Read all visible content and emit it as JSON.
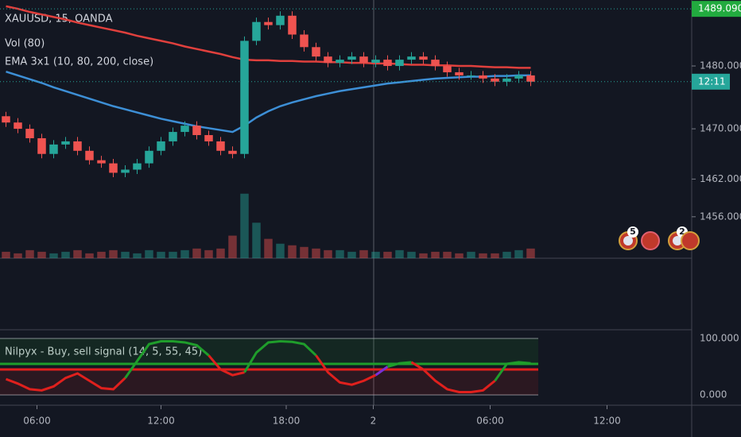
{
  "chart_data": {
    "type": "candlestick",
    "title": "XAUUSD, 15, OANDA",
    "open": [
      1472,
      1471,
      1470,
      1468.5,
      1466,
      1467.5,
      1468,
      1466.5,
      1465,
      1464.5,
      1463,
      1463.5,
      1464.5,
      1466.5,
      1468,
      1469.5,
      1470.5,
      1469,
      1468,
      1466.5,
      1466,
      1484,
      1487,
      1486.5,
      1488,
      1485,
      1483,
      1481.5,
      1480.5,
      1481,
      1481.5,
      1480.5,
      1481,
      1480,
      1481,
      1481.5,
      1481,
      1480,
      1479,
      1478.5,
      1478.5,
      1478,
      1477.5,
      1478,
      1478.5
    ],
    "high": [
      1472.7,
      1471.7,
      1470.7,
      1469.2,
      1468.2,
      1468.7,
      1468.7,
      1467.2,
      1465.7,
      1465.2,
      1464.2,
      1465.2,
      1467.2,
      1468.7,
      1470.2,
      1471.2,
      1471.2,
      1469.7,
      1468.7,
      1467.2,
      1484.7,
      1487.7,
      1487.7,
      1488.7,
      1488.7,
      1485.7,
      1483.7,
      1482.2,
      1481.7,
      1482.2,
      1482.2,
      1481.7,
      1481.7,
      1481.7,
      1482.2,
      1482.2,
      1481.7,
      1480.7,
      1479.7,
      1479.2,
      1479.2,
      1478.7,
      1478.7,
      1479.2,
      1479.2
    ],
    "low": [
      1470.3,
      1469.3,
      1467.8,
      1465.3,
      1465.3,
      1466.8,
      1465.8,
      1464.3,
      1463.8,
      1462.3,
      1462.3,
      1462.8,
      1463.8,
      1465.8,
      1467.3,
      1468.8,
      1468.3,
      1467.3,
      1465.8,
      1465.3,
      1465.3,
      1483.3,
      1485.8,
      1485.8,
      1484.3,
      1482.3,
      1480.8,
      1479.8,
      1479.8,
      1480.3,
      1479.8,
      1479.8,
      1479.3,
      1479.3,
      1480.3,
      1480.3,
      1479.3,
      1478.3,
      1477.8,
      1477.8,
      1477.3,
      1476.8,
      1476.8,
      1477.3,
      1476.8
    ],
    "close": [
      1471,
      1470,
      1468.5,
      1466,
      1467.5,
      1468,
      1466.5,
      1465,
      1464.5,
      1463,
      1463.5,
      1464.5,
      1466.5,
      1468,
      1469.5,
      1470.5,
      1469,
      1468,
      1466.5,
      1466,
      1484,
      1487,
      1486.5,
      1488,
      1485,
      1483,
      1481.5,
      1480.5,
      1481,
      1481.5,
      1480.5,
      1481,
      1480,
      1481,
      1481.5,
      1481,
      1480,
      1479,
      1478.5,
      1478.5,
      1478,
      1477.5,
      1478,
      1478.5,
      1477.5
    ],
    "up_color": "#26a69a",
    "down_color": "#ef5350",
    "ylim": [
      1449.4,
      1490.5
    ],
    "yticks": [
      {
        "value": 1456,
        "label": "1456.000"
      },
      {
        "value": 1462,
        "label": "1462.000"
      },
      {
        "value": 1470,
        "label": "1470.000"
      },
      {
        "value": 1480,
        "label": "1480.000"
      }
    ],
    "xlim": [
      0,
      58
    ],
    "xticks": [
      {
        "value": 3.1,
        "label": "06:00"
      },
      {
        "value": 13.5,
        "label": "12:00"
      },
      {
        "value": 24,
        "label": "18:00"
      },
      {
        "value": 31.3,
        "label": "2"
      },
      {
        "value": 41.1,
        "label": "06:00"
      },
      {
        "value": 50.9,
        "label": "12:00"
      }
    ],
    "price_label": {
      "value": 1489.09,
      "label": "1489.090"
    },
    "countdown": "12:11",
    "volume": {
      "name": "Vol (80)",
      "ylim": [
        0,
        160
      ],
      "values": [
        4,
        3,
        5,
        4,
        3,
        4,
        5,
        3,
        4,
        5,
        4,
        3,
        5,
        4,
        4,
        5,
        6,
        5,
        6,
        14,
        40,
        22,
        12,
        9,
        8,
        7,
        6,
        5,
        5,
        4,
        5,
        4,
        4,
        5,
        4,
        3,
        4,
        4,
        3,
        4,
        3,
        3,
        4,
        5,
        6
      ]
    },
    "ema": {
      "name": "EMA 3x1 (10, 80, 200, close)",
      "series": [
        {
          "color": "#e0403d",
          "values": [
            1489.5,
            1489.1,
            1488.6,
            1488.2,
            1487.8,
            1487.4,
            1486.9,
            1486.5,
            1486.1,
            1485.7,
            1485.3,
            1484.8,
            1484.4,
            1484,
            1483.6,
            1483.1,
            1482.7,
            1482.3,
            1481.9,
            1481.4,
            1481,
            1480.9,
            1480.9,
            1480.8,
            1480.8,
            1480.7,
            1480.7,
            1480.6,
            1480.6,
            1480.5,
            1480.5,
            1480.4,
            1480.4,
            1480.3,
            1480.2,
            1480.2,
            1480.1,
            1480.1,
            1480,
            1480,
            1479.9,
            1479.8,
            1479.8,
            1479.7,
            1479.7
          ]
        },
        {
          "color": "#3d8fd6",
          "values": [
            1479.1,
            1478.5,
            1477.9,
            1477.3,
            1476.6,
            1476,
            1475.4,
            1474.8,
            1474.2,
            1473.6,
            1473.1,
            1472.6,
            1472.1,
            1471.6,
            1471.2,
            1470.8,
            1470.4,
            1470.1,
            1469.8,
            1469.5,
            1470.5,
            1471.8,
            1472.8,
            1473.6,
            1474.2,
            1474.7,
            1475.2,
            1475.6,
            1476,
            1476.3,
            1476.6,
            1476.9,
            1477.2,
            1477.4,
            1477.6,
            1477.8,
            1478,
            1478.1,
            1478.2,
            1478.3,
            1478.3,
            1478.4,
            1478.4,
            1478.5,
            1478.5
          ]
        }
      ]
    },
    "oscillator": {
      "name": "Nilpyx - Buy, sell signal (14, 5, 55, 45)",
      "ylim": [
        -18.3,
        115.5
      ],
      "yticks": [
        {
          "value": 100,
          "label": "100.000"
        },
        {
          "value": 0,
          "label": "0.000"
        }
      ],
      "levels": [
        55,
        45
      ],
      "level_colors": [
        "#1f9d2b",
        "#e0201d"
      ],
      "values": [
        28,
        20,
        10,
        8,
        15,
        30,
        38,
        25,
        12,
        10,
        30,
        60,
        90,
        95,
        95,
        93,
        88,
        70,
        45,
        35,
        40,
        75,
        93,
        95,
        94,
        90,
        70,
        40,
        22,
        18,
        25,
        35,
        50,
        56,
        58,
        45,
        25,
        10,
        5,
        5,
        8,
        25,
        55,
        58,
        56
      ]
    },
    "event_badges": [
      "5",
      "2"
    ]
  }
}
